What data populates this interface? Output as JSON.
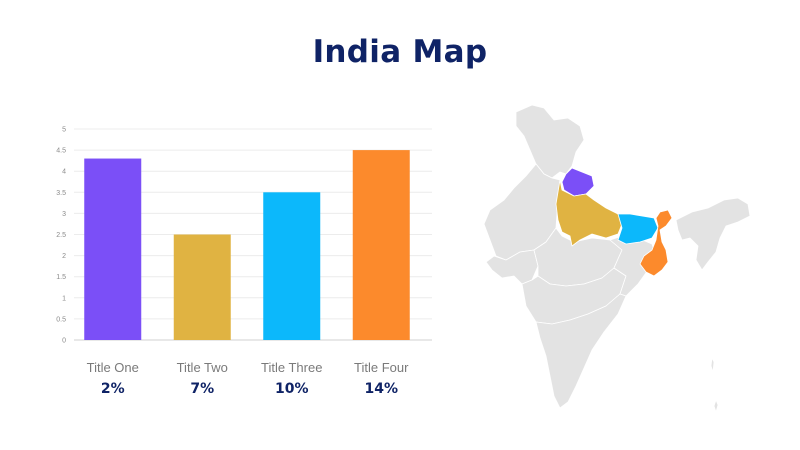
{
  "page": {
    "title": "India Map"
  },
  "chart_data": {
    "type": "bar",
    "categories": [
      "Title One",
      "Title Two",
      "Title Three",
      "Title Four"
    ],
    "values": [
      4.3,
      2.5,
      3.5,
      4.5
    ],
    "percent_labels": [
      "2%",
      "7%",
      "10%",
      "14%"
    ],
    "colors": [
      "#7b4ff7",
      "#e0b342",
      "#0cb8fb",
      "#fc8a2c"
    ],
    "yticks": [
      "0",
      "0.5",
      "1",
      "1.5",
      "2",
      "2.5",
      "3",
      "3.5",
      "4",
      "4.5",
      "5"
    ],
    "ylim": [
      0,
      5
    ],
    "grid": true,
    "title": "",
    "xlabel": "",
    "ylabel": ""
  },
  "map": {
    "base_color": "#e3e3e3",
    "highlighted_regions": [
      {
        "region": "Uttarakhand",
        "color": "#7b4ff7"
      },
      {
        "region": "Uttar Pradesh",
        "color": "#e0b342"
      },
      {
        "region": "Bihar",
        "color": "#0cb8fb"
      },
      {
        "region": "West Bengal",
        "color": "#fc8a2c"
      }
    ]
  }
}
